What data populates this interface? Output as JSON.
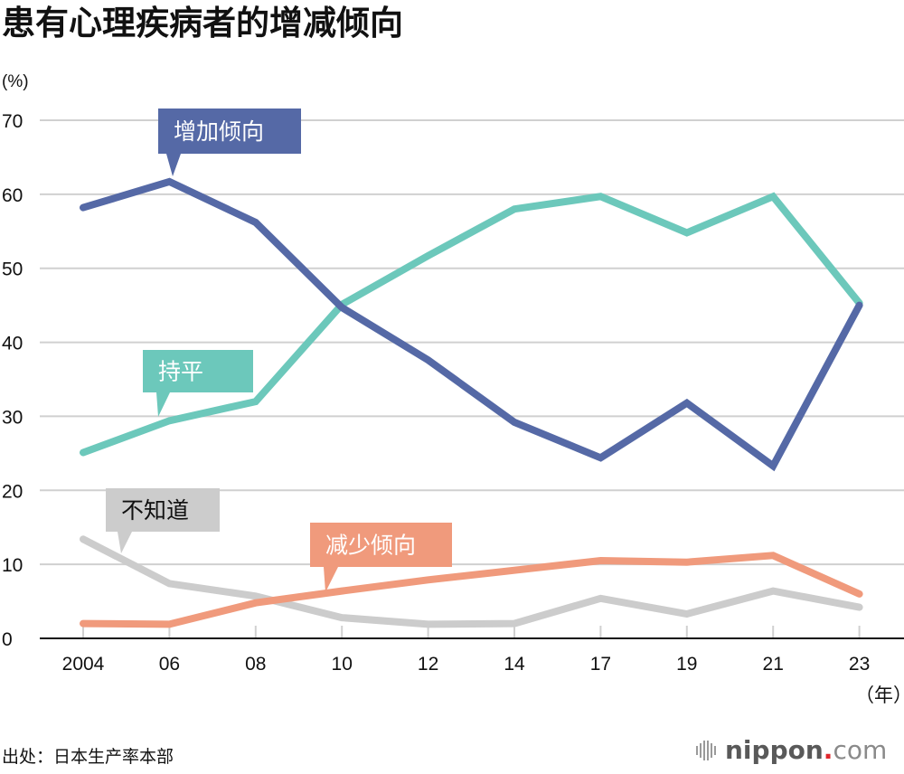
{
  "title": "患有心理疾病者的增减倾向",
  "source": "出处：日本生产率本部",
  "logo": {
    "icon": "sound-bars-icon",
    "brand": "nippon",
    "dot": ".",
    "tld": "com"
  },
  "colors": {
    "increase": "#5569a6",
    "flat": "#6cc8bb",
    "unknown": "#cccccc",
    "decrease": "#f09a7c",
    "grid": "#d0d0d0",
    "axis": "#111111"
  },
  "chart_data": {
    "type": "line",
    "title": "患有心理疾病者的增减倾向",
    "xlabel": "（年）",
    "ylabel": "(%)",
    "ylim": [
      0,
      70
    ],
    "yticks": [
      0,
      10,
      20,
      30,
      40,
      50,
      60,
      70
    ],
    "grid": true,
    "categories": [
      "2004",
      "06",
      "08",
      "10",
      "12",
      "14",
      "17",
      "19",
      "21",
      "23"
    ],
    "series": [
      {
        "name": "增加倾向",
        "key": "increase",
        "label_text_color": "#ffffff",
        "values": [
          58.2,
          61.7,
          56.2,
          44.7,
          37.6,
          29.2,
          24.4,
          31.8,
          23.3,
          45.0
        ],
        "callout_at": 1
      },
      {
        "name": "持平",
        "key": "flat",
        "label_text_color": "#ffffff",
        "values": [
          25.1,
          29.4,
          32.0,
          45.1,
          51.7,
          58.0,
          59.7,
          54.8,
          59.7,
          45.3
        ],
        "callout_at": 0.5
      },
      {
        "name": "不知道",
        "key": "unknown",
        "label_text_color": "#111111",
        "values": [
          13.4,
          7.4,
          5.7,
          2.8,
          1.9,
          2.0,
          5.4,
          3.3,
          6.4,
          4.2
        ],
        "callout_at": 0.5
      },
      {
        "name": "减少倾向",
        "key": "decrease",
        "label_text_color": "#ffffff",
        "values": [
          2.0,
          1.9,
          4.8,
          6.4,
          7.9,
          9.2,
          10.5,
          10.3,
          11.2,
          6.0
        ],
        "callout_at": 2.8
      }
    ]
  }
}
